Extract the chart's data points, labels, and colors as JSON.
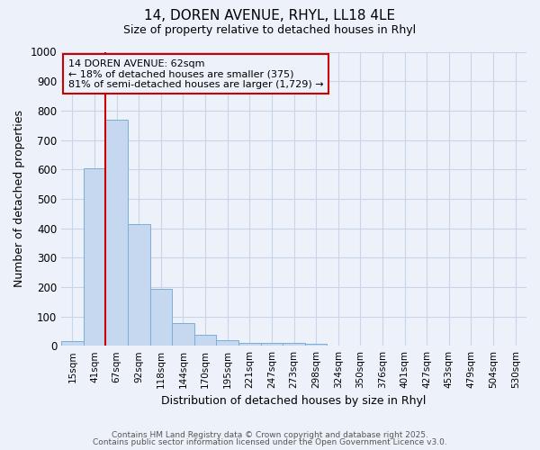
{
  "title_line1": "14, DOREN AVENUE, RHYL, LL18 4LE",
  "title_line2": "Size of property relative to detached houses in Rhyl",
  "xlabel": "Distribution of detached houses by size in Rhyl",
  "ylabel": "Number of detached properties",
  "categories": [
    "15sqm",
    "41sqm",
    "67sqm",
    "92sqm",
    "118sqm",
    "144sqm",
    "170sqm",
    "195sqm",
    "221sqm",
    "247sqm",
    "273sqm",
    "298sqm",
    "324sqm",
    "350sqm",
    "376sqm",
    "401sqm",
    "427sqm",
    "453sqm",
    "479sqm",
    "504sqm",
    "530sqm"
  ],
  "values": [
    15,
    605,
    770,
    413,
    193,
    78,
    37,
    18,
    10,
    10,
    10,
    8,
    0,
    0,
    0,
    0,
    0,
    0,
    0,
    0,
    0
  ],
  "bar_color": "#c5d8f0",
  "bar_edge_color": "#7aaed6",
  "vline_color": "#cc0000",
  "vline_x_index": 2,
  "annotation_title": "14 DOREN AVENUE: 62sqm",
  "annotation_line2": "← 18% of detached houses are smaller (375)",
  "annotation_line3": "81% of semi-detached houses are larger (1,729) →",
  "annotation_box_edge_color": "#cc0000",
  "ylim": [
    0,
    1000
  ],
  "yticks": [
    0,
    100,
    200,
    300,
    400,
    500,
    600,
    700,
    800,
    900,
    1000
  ],
  "grid_color": "#c8d4e8",
  "bg_color": "#edf2fa",
  "plot_bg_color": "#edf2fa",
  "footer_line1": "Contains HM Land Registry data © Crown copyright and database right 2025.",
  "footer_line2": "Contains public sector information licensed under the Open Government Licence v3.0."
}
